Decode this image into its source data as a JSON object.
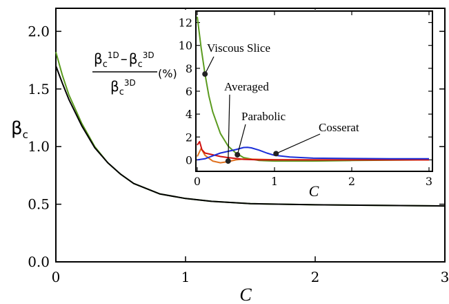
{
  "chart_data": [
    {
      "type": "line",
      "role": "main",
      "xlabel": "C",
      "ylabel": {
        "base": "β",
        "sub": "c"
      },
      "xlim": [
        0,
        3
      ],
      "ylim": [
        0,
        2.2
      ],
      "xticks": [
        {
          "value": 0,
          "label": "0"
        },
        {
          "value": 1,
          "label": "1"
        },
        {
          "value": 2,
          "label": "2"
        },
        {
          "value": 3,
          "label": "3"
        }
      ],
      "yticks": [
        {
          "value": 0,
          "label": "0.0"
        },
        {
          "value": 0.5,
          "label": "0.5"
        },
        {
          "value": 1.0,
          "label": "1.0"
        },
        {
          "value": 1.5,
          "label": "1.5"
        },
        {
          "value": 2.0,
          "label": "2.0"
        }
      ],
      "grid": false,
      "series": [
        {
          "color": "#5a9a1e",
          "x": [
            0,
            0.05,
            0.1,
            0.2,
            0.3,
            0.4,
            0.5,
            0.6,
            0.8,
            1.0,
            1.2,
            1.5,
            2.0,
            2.5,
            3.0
          ],
          "y": [
            1.82,
            1.62,
            1.45,
            1.2,
            1.0,
            0.86,
            0.76,
            0.68,
            0.59,
            0.55,
            0.525,
            0.505,
            0.495,
            0.49,
            0.485
          ]
        },
        {
          "color": "#000000",
          "x": [
            0,
            0.05,
            0.1,
            0.2,
            0.3,
            0.4,
            0.5,
            0.6,
            0.8,
            1.0,
            1.2,
            1.5,
            2.0,
            2.5,
            3.0
          ],
          "y": [
            1.7,
            1.55,
            1.41,
            1.18,
            0.99,
            0.86,
            0.76,
            0.68,
            0.59,
            0.55,
            0.525,
            0.505,
            0.495,
            0.49,
            0.485
          ]
        }
      ]
    },
    {
      "type": "line",
      "role": "inset",
      "xlabel": "C",
      "ylabel_formula": {
        "num_left": "β",
        "num_left_sup": "1D",
        "num_left_sub": "c",
        "minus": "–",
        "num_right": "β",
        "num_right_sup": "3D",
        "num_right_sub": "c",
        "den": "β",
        "den_sup": "3D",
        "den_sub": "c",
        "unit": "(%)"
      },
      "xlim": [
        0,
        3
      ],
      "ylim": [
        -1,
        13
      ],
      "xticks": [
        {
          "value": 0,
          "label": "0"
        },
        {
          "value": 1,
          "label": "1"
        },
        {
          "value": 2,
          "label": "2"
        },
        {
          "value": 3,
          "label": "3"
        }
      ],
      "yticks": [
        {
          "value": 0,
          "label": "0"
        },
        {
          "value": 2,
          "label": "2"
        },
        {
          "value": 4,
          "label": "4"
        },
        {
          "value": 6,
          "label": "6"
        },
        {
          "value": 8,
          "label": "8"
        },
        {
          "value": 10,
          "label": "10"
        },
        {
          "value": 12,
          "label": "12"
        }
      ],
      "grid": false,
      "series": [
        {
          "name": "Viscous Slice",
          "color": "#5a9a1e",
          "x": [
            0,
            0.05,
            0.1,
            0.15,
            0.2,
            0.3,
            0.4,
            0.5,
            0.6,
            0.8,
            1.0,
            1.5,
            2.0,
            3.0
          ],
          "y": [
            12.5,
            9.8,
            7.5,
            5.6,
            4.2,
            2.3,
            1.2,
            0.6,
            0.2,
            -0.05,
            -0.1,
            -0.1,
            -0.05,
            0
          ]
        },
        {
          "name": "Averaged",
          "color": "#e0711f",
          "x": [
            0,
            0.05,
            0.1,
            0.2,
            0.3,
            0.4,
            0.5,
            0.6,
            0.8,
            1.0,
            1.5,
            2.0,
            3.0
          ],
          "y": [
            0.3,
            1.0,
            0.4,
            -0.1,
            -0.25,
            -0.15,
            0.0,
            0.08,
            0.05,
            0.02,
            0.0,
            0.0,
            0.0
          ]
        },
        {
          "name": "Parabolic",
          "color": "#d01010",
          "x": [
            0,
            0.03,
            0.06,
            0.1,
            0.2,
            0.3,
            0.4,
            0.5,
            0.6,
            0.8,
            1.0,
            1.5,
            2.0,
            3.0
          ],
          "y": [
            1.3,
            1.6,
            0.9,
            0.6,
            0.45,
            0.3,
            0.2,
            0.12,
            0.05,
            0.0,
            0.0,
            0.0,
            0.0,
            0.0
          ]
        },
        {
          "name": "Cosserat",
          "color": "#1a2ed8",
          "x": [
            0,
            0.1,
            0.2,
            0.3,
            0.4,
            0.5,
            0.6,
            0.65,
            0.7,
            0.8,
            0.9,
            1.0,
            1.2,
            1.5,
            2.0,
            2.5,
            3.0
          ],
          "y": [
            0.0,
            0.1,
            0.35,
            0.6,
            0.75,
            0.9,
            1.08,
            1.1,
            1.05,
            0.85,
            0.6,
            0.4,
            0.25,
            0.15,
            0.12,
            0.1,
            0.1
          ]
        }
      ],
      "annotations": [
        {
          "label": "Viscous Slice",
          "point": [
            0.1,
            7.5
          ]
        },
        {
          "label": "Averaged",
          "point": [
            0.4,
            -0.1
          ]
        },
        {
          "label": "Parabolic",
          "point": [
            0.52,
            0.45
          ]
        },
        {
          "label": "Cosserat",
          "point": [
            1.02,
            0.55
          ]
        }
      ]
    }
  ]
}
